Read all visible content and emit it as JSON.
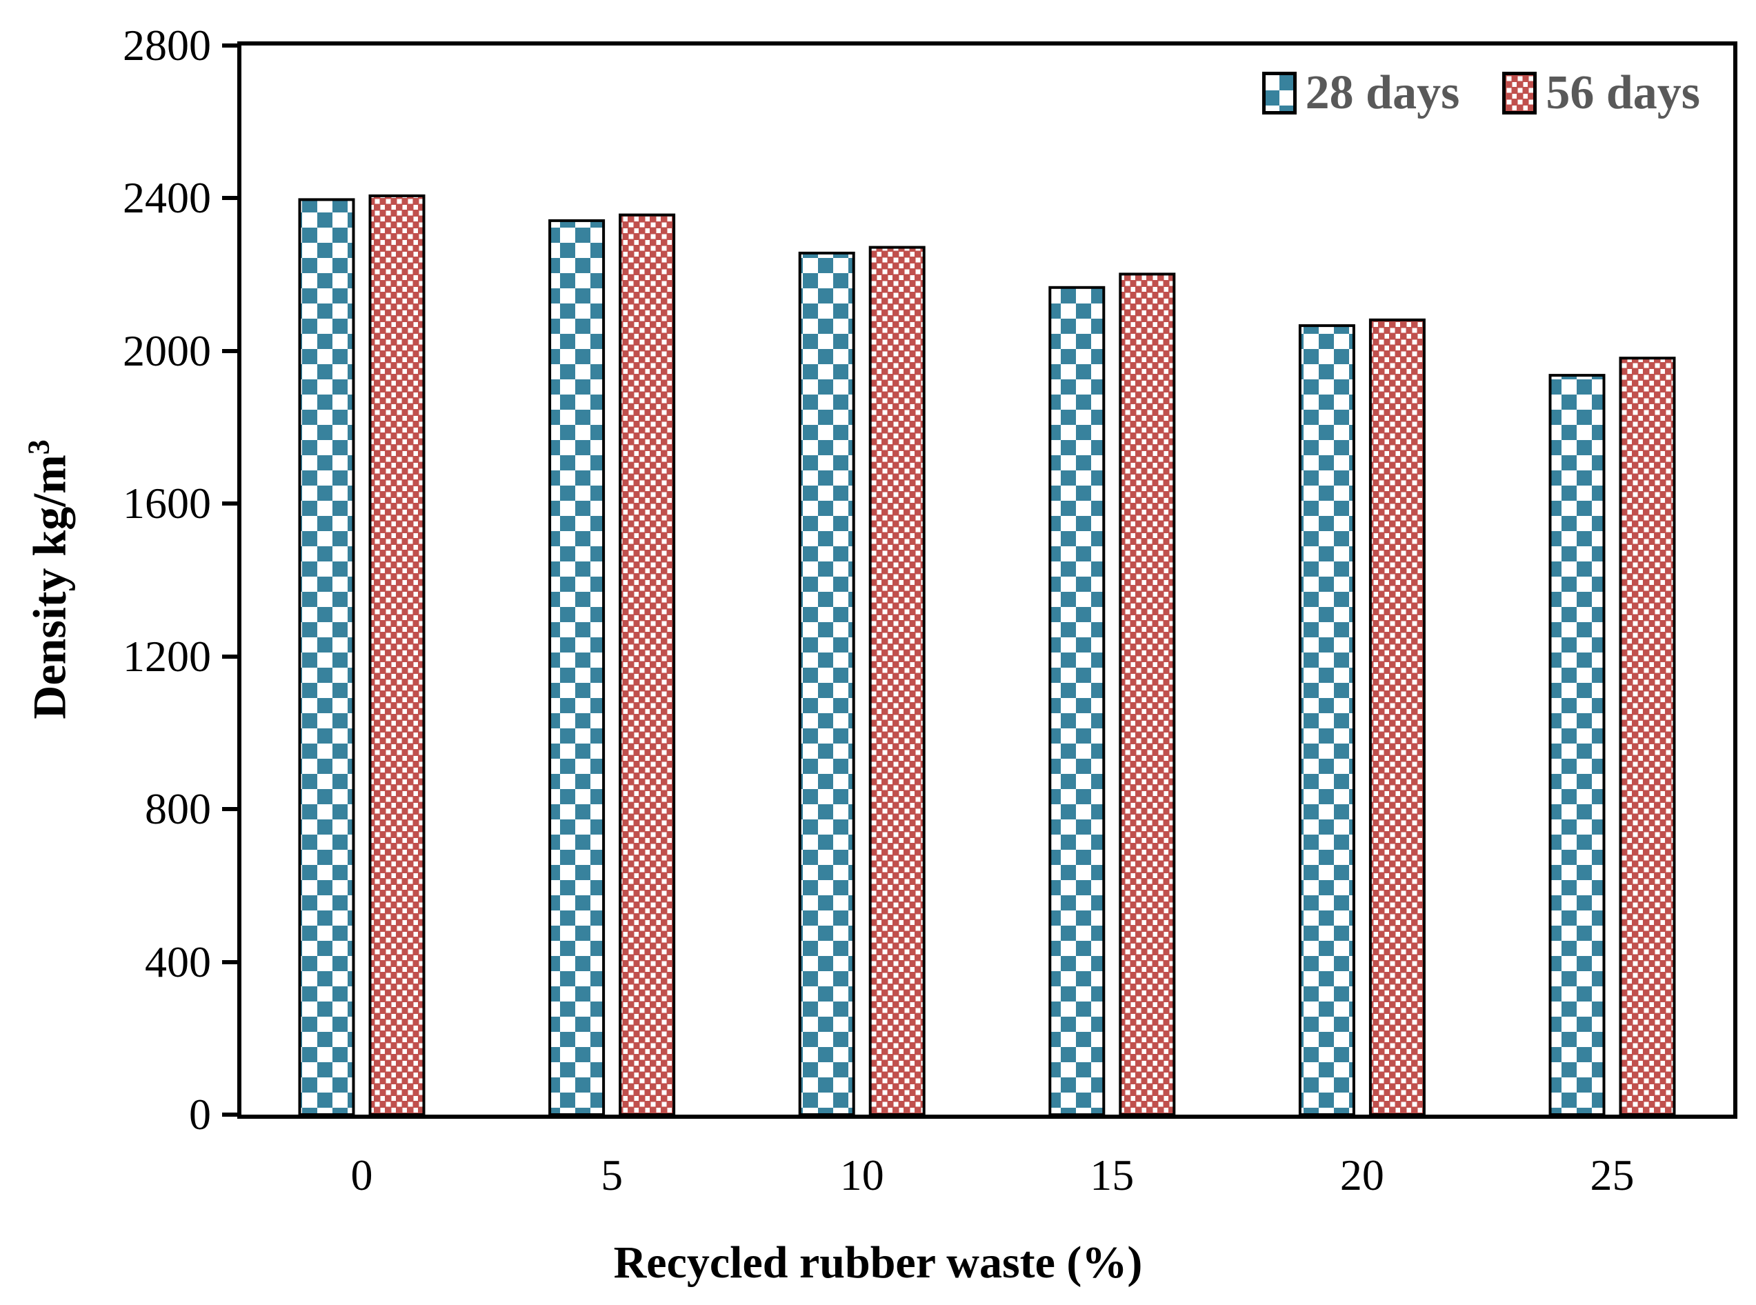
{
  "chart_data": {
    "type": "bar",
    "title": "",
    "categories": [
      "0",
      "5",
      "10",
      "15",
      "20",
      "25"
    ],
    "series": [
      {
        "name": "28 days",
        "pattern": "checker",
        "color": "#38829D",
        "values": [
          2400,
          2345,
          2260,
          2170,
          2070,
          1940
        ]
      },
      {
        "name": "56 days",
        "pattern": "dots",
        "color": "#C0504D",
        "values": [
          2410,
          2360,
          2275,
          2205,
          2085,
          1985
        ]
      }
    ],
    "xlabel": "Recycled rubber waste (%)",
    "ylabel": "Density kg/m3",
    "ylim": [
      0,
      2800
    ],
    "yticks": [
      0,
      400,
      800,
      1200,
      1600,
      2000,
      2400,
      2800
    ],
    "grid": false,
    "legend_position": "top-right"
  },
  "axes": {
    "y": {
      "title_main": "Density kg/m",
      "title_sup": "3",
      "tick_labels": [
        "0",
        "400",
        "800",
        "1200",
        "1600",
        "2000",
        "2400",
        "2800"
      ]
    },
    "x": {
      "title": "Recycled rubber waste (%)",
      "tick_labels": [
        "0",
        "5",
        "10",
        "15",
        "20",
        "25"
      ]
    }
  },
  "legend": {
    "items": [
      {
        "label": "28 days",
        "swatch": "blue-checker"
      },
      {
        "label": "56 days",
        "swatch": "red-dots"
      }
    ],
    "text_color": "#595959"
  },
  "colors": {
    "bar_28_days": "#38829D",
    "bar_56_days": "#C0504D",
    "pattern_background": "#FFFFFF",
    "axis": "#000000",
    "legend_text": "#595959"
  }
}
